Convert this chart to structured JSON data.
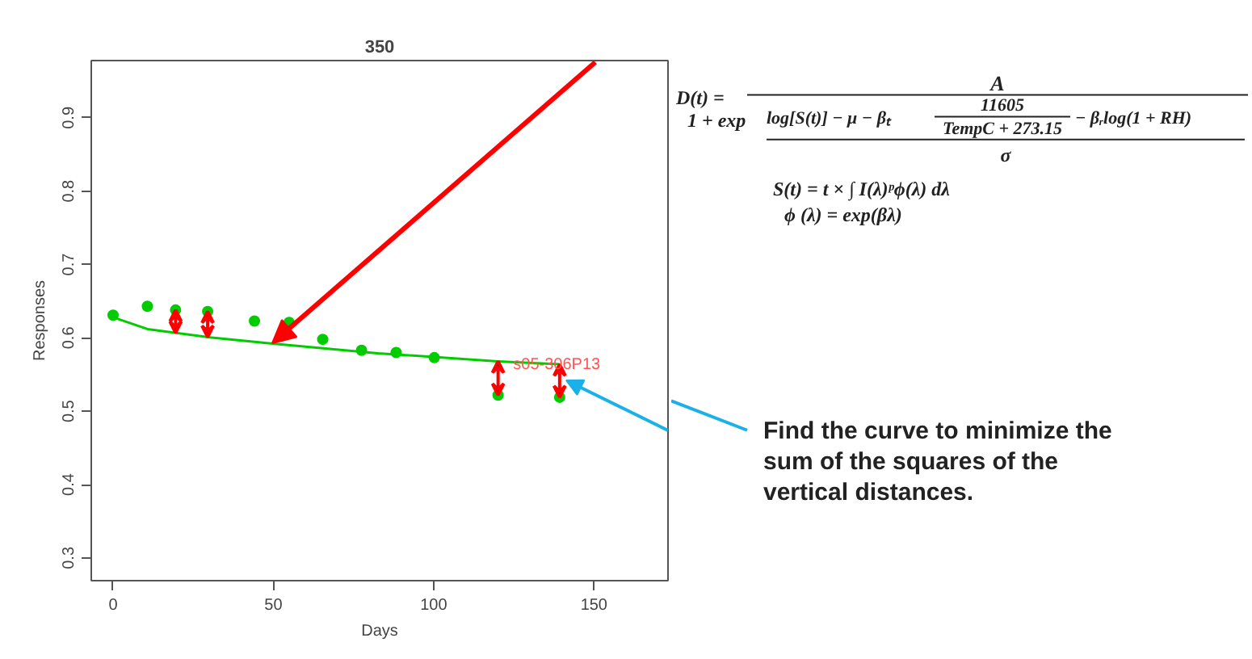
{
  "chart_data": {
    "type": "scatter",
    "title": "350",
    "xlabel": "Days",
    "ylabel": "Responses",
    "xlim": [
      -6.8,
      173.1
    ],
    "ylim": [
      0.269,
      0.978
    ],
    "xticks": [
      0,
      50,
      100,
      150
    ],
    "yticks": [
      0.3,
      0.4,
      0.5,
      0.6,
      0.7,
      0.8,
      0.9
    ],
    "grid": false,
    "series": [
      {
        "color": "#00cc00",
        "marker": "circle",
        "x": [
          0,
          10.7,
          19.5,
          29.5,
          44.1,
          54.9,
          65.4,
          77.5,
          88.3,
          100.2,
          120.1,
          139.3
        ],
        "values": [
          0.631,
          0.643,
          0.638,
          0.636,
          0.623,
          0.621,
          0.598,
          0.583,
          0.58,
          0.573,
          0.522,
          0.519
        ]
      },
      {
        "type": "line",
        "color": "#00cc00",
        "marker": "none",
        "x": [
          0,
          10.7,
          29.5,
          49.8,
          82.6,
          120.1,
          139.3
        ],
        "values": [
          0.628,
          0.612,
          0.601,
          0.592,
          0.579,
          0.568,
          0.564
        ]
      }
    ],
    "annotations": [
      {
        "text": "s05-306P13",
        "x": 124.8,
        "y": 0.563
      },
      "D(t) =",
      "A",
      "1 + exp",
      "log[S(t)] − μ − βₜ",
      "11605",
      "TempC + 273.15",
      "− βᵣlog(1 + RH)",
      "σ",
      "S(t) = t × ∫ I(λ)ᵖϕ(λ) dλ",
      "ϕ (λ) = exp(βλ)",
      "Find the curve to minimize the",
      "sum of the squares of the",
      "vertical distances."
    ]
  }
}
